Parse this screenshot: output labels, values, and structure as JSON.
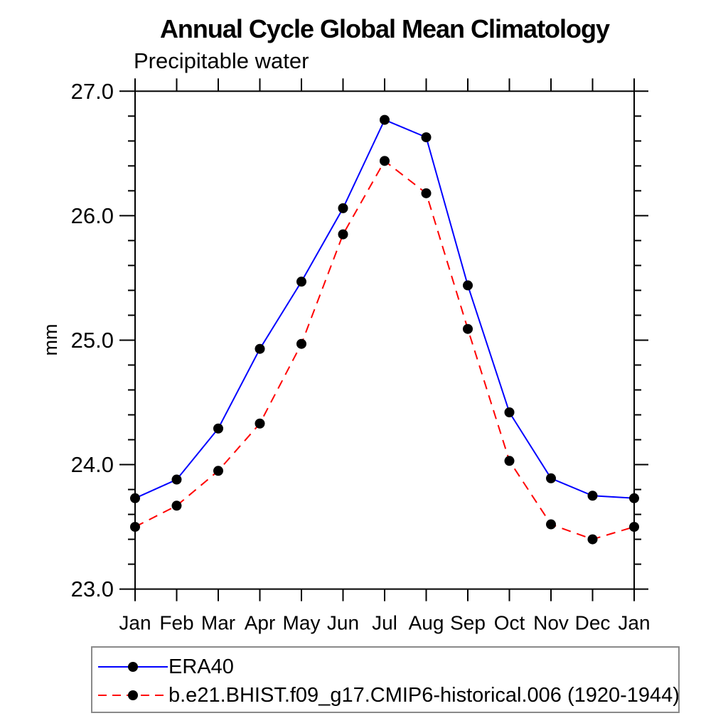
{
  "chart": {
    "title": "Annual Cycle Global Mean Climatology",
    "subtitle": "Precipitable water",
    "ylabel": "mm"
  },
  "chart_data": {
    "type": "line",
    "title": "Annual Cycle Global Mean Climatology",
    "subtitle": "Precipitable water",
    "xlabel": "",
    "ylabel": "mm",
    "categories": [
      "Jan",
      "Feb",
      "Mar",
      "Apr",
      "May",
      "Jun",
      "Jul",
      "Aug",
      "Sep",
      "Oct",
      "Nov",
      "Dec",
      "Jan"
    ],
    "ylim": [
      23.0,
      27.0
    ],
    "yticks_major": [
      23.0,
      24.0,
      25.0,
      26.0,
      27.0
    ],
    "ytick_minor_step": 0.2,
    "grid": false,
    "legend_position": "bottom-left-box",
    "axis_color": "#000000",
    "marker_color": "#000000",
    "series": [
      {
        "name": "ERA40",
        "color": "#0000ff",
        "line_style": "solid",
        "marker": "filled-circle",
        "values": [
          23.73,
          23.88,
          24.29,
          24.93,
          25.47,
          26.06,
          26.77,
          26.63,
          25.44,
          24.42,
          23.89,
          23.75,
          23.73
        ]
      },
      {
        "name": "b.e21.BHIST.f09_g17.CMIP6-historical.006 (1920-1944)",
        "color": "#ff0000",
        "line_style": "dashed",
        "marker": "filled-circle",
        "values": [
          23.5,
          23.67,
          23.95,
          24.33,
          24.97,
          25.85,
          26.44,
          26.18,
          25.09,
          24.03,
          23.52,
          23.4,
          23.5
        ]
      }
    ]
  }
}
